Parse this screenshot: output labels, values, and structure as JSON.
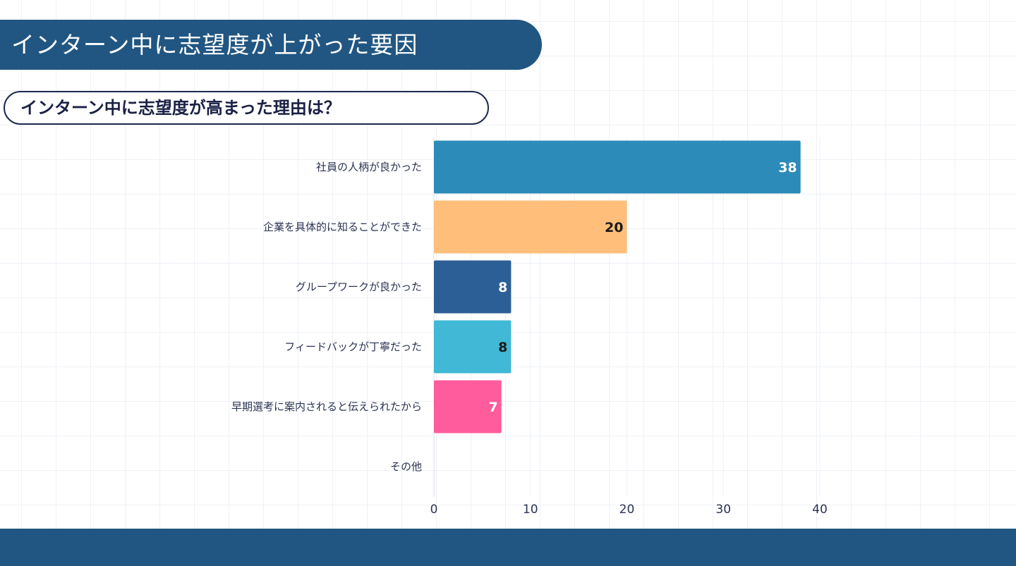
{
  "header": {
    "title": "インターン中に志望度が上がった要因",
    "question": "インターン中に志望度が高まった理由は？"
  },
  "chart_data": {
    "type": "bar",
    "orientation": "horizontal",
    "categories": [
      "社員の人柄が良かった",
      "企業を具体的に知ることができた",
      "グループワークが良かった",
      "フィードバックが丁寧だった",
      "早期選考に案内されると伝えられたから",
      "その他"
    ],
    "values": [
      38,
      20,
      8,
      8,
      7,
      0
    ],
    "colors": [
      "#2c8bb9",
      "#ffbf7a",
      "#2d5f97",
      "#40b8d6",
      "#ff5c9d",
      "#cccccc"
    ],
    "label_colors": [
      "#ffffff",
      "#1b1b1b",
      "#ffffff",
      "#1b1b1b",
      "#ffffff",
      "#1b1b1b"
    ],
    "show_labels": [
      true,
      true,
      true,
      true,
      true,
      false
    ],
    "xlim": [
      0,
      40
    ],
    "xticks": [
      "0",
      "10",
      "20",
      "30",
      "40"
    ],
    "title": "インターン中に志望度が高まった理由は？",
    "xlabel": "",
    "ylabel": "",
    "grid": true
  }
}
